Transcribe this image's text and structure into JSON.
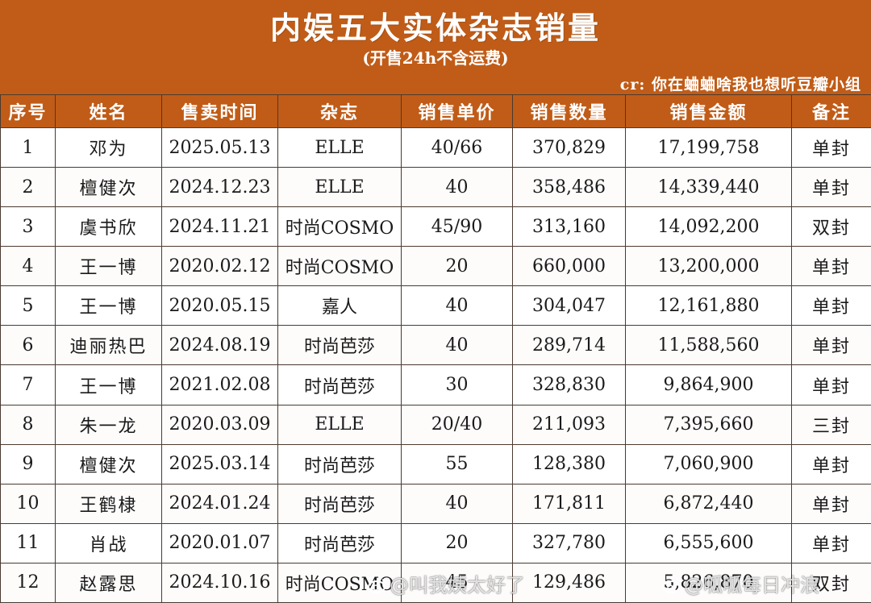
{
  "header": {
    "title": "内娱五大实体杂志销量",
    "subtitle": "(开售24h不含运费)",
    "credit": "cr: 你在蛐蛐啥我也想听豆瓣小组"
  },
  "table": {
    "columns": [
      "序号",
      "姓名",
      "售卖时间",
      "杂志",
      "销售单价",
      "销售数量",
      "销售金额",
      "备注"
    ],
    "rows": [
      [
        "1",
        "邓为",
        "2025.05.13",
        "ELLE",
        "40/66",
        "370,829",
        "17,199,758",
        "单封"
      ],
      [
        "2",
        "檀健次",
        "2024.12.23",
        "ELLE",
        "40",
        "358,486",
        "14,339,440",
        "单封"
      ],
      [
        "3",
        "虞书欣",
        "2024.11.21",
        "时尚COSMO",
        "45/90",
        "313,160",
        "14,092,200",
        "双封"
      ],
      [
        "4",
        "王一博",
        "2020.02.12",
        "时尚COSMO",
        "20",
        "660,000",
        "13,200,000",
        "单封"
      ],
      [
        "5",
        "王一博",
        "2020.05.15",
        "嘉人",
        "40",
        "304,047",
        "12,161,880",
        "单封"
      ],
      [
        "6",
        "迪丽热巴",
        "2024.08.19",
        "时尚芭莎",
        "40",
        "289,714",
        "11,588,560",
        "单封"
      ],
      [
        "7",
        "王一博",
        "2021.02.08",
        "时尚芭莎",
        "30",
        "328,830",
        "9,864,900",
        "单封"
      ],
      [
        "8",
        "朱一龙",
        "2020.03.09",
        "ELLE",
        "20/40",
        "211,093",
        "7,395,660",
        "三封"
      ],
      [
        "9",
        "檀健次",
        "2025.03.14",
        "时尚芭莎",
        "55",
        "128,380",
        "7,060,900",
        "单封"
      ],
      [
        "10",
        "王鹤棣",
        "2024.01.24",
        "时尚芭莎",
        "40",
        "171,811",
        "6,872,440",
        "单封"
      ],
      [
        "11",
        "肖战",
        "2020.01.07",
        "时尚芭莎",
        "20",
        "327,780",
        "6,555,600",
        "单封"
      ],
      [
        "12",
        "赵露思",
        "2024.10.16",
        "时尚COSMO",
        "45",
        "129,486",
        "5,826,870",
        "双封"
      ]
    ]
  },
  "watermarks": {
    "left": "@叫我姨太好了",
    "right": "@呱呱每日冲浪",
    "icon": "weibo-icon"
  },
  "colors": {
    "header_bg": "#c05c17",
    "header_text": "#ffffff",
    "grid": "#4a3a30"
  }
}
